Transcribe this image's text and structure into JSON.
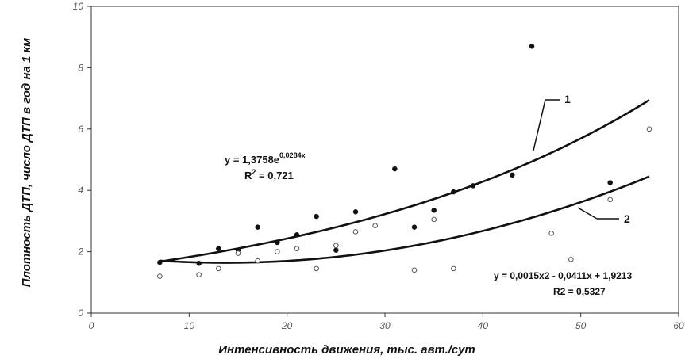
{
  "chart_data": {
    "type": "scatter",
    "xlabel": "Интенсивность движения, тыс. авт./сут",
    "ylabel": "Плотность ДТП, число ДТП в год на 1 км",
    "xlim": [
      0,
      60
    ],
    "ylim": [
      0,
      10
    ],
    "x_ticks": [
      "0",
      "10",
      "20",
      "30",
      "40",
      "50",
      "60"
    ],
    "y_ticks": [
      "0",
      "2",
      "4",
      "6",
      "8",
      "10"
    ],
    "grid": false,
    "series": [
      {
        "marker": "filled-circle",
        "color": "#111111",
        "points": [
          [
            7,
            1.65
          ],
          [
            11,
            1.62
          ],
          [
            13,
            2.1
          ],
          [
            15,
            2.05
          ],
          [
            17,
            2.8
          ],
          [
            19,
            2.3
          ],
          [
            21,
            2.55
          ],
          [
            23,
            3.15
          ],
          [
            25,
            2.05
          ],
          [
            27,
            3.3
          ],
          [
            31,
            4.7
          ],
          [
            33,
            2.8
          ],
          [
            35,
            3.35
          ],
          [
            37,
            3.95
          ],
          [
            39,
            4.15
          ],
          [
            43,
            4.5
          ],
          [
            45,
            8.7
          ],
          [
            53,
            4.25
          ]
        ]
      },
      {
        "marker": "open-circle",
        "color": "#555555",
        "points": [
          [
            7,
            1.2
          ],
          [
            11,
            1.25
          ],
          [
            13,
            1.45
          ],
          [
            15,
            1.95
          ],
          [
            17,
            1.7
          ],
          [
            19,
            2.0
          ],
          [
            21,
            2.1
          ],
          [
            23,
            1.45
          ],
          [
            25,
            2.2
          ],
          [
            27,
            2.65
          ],
          [
            29,
            2.85
          ],
          [
            33,
            1.4
          ],
          [
            35,
            3.05
          ],
          [
            37,
            1.45
          ],
          [
            47,
            2.6
          ],
          [
            49,
            1.75
          ],
          [
            53,
            3.7
          ],
          [
            57,
            6.0
          ]
        ]
      }
    ],
    "trendlines": [
      {
        "label": "1",
        "type": "exponential",
        "a": 1.3758,
        "b": 0.0284,
        "x_range": [
          7,
          57
        ],
        "equation_main": "y = 1,3758e",
        "equation_exp": "0,0284x",
        "r2_prefix": "R",
        "r2_sup": "2",
        "r2_value": " = 0,721"
      },
      {
        "label": "2",
        "type": "polynomial",
        "coefficients": [
          0.0015,
          -0.0411,
          1.9213
        ],
        "x_range": [
          7,
          57
        ],
        "equation": "y = 0,0015x2 - 0,0411x + 1,9213",
        "r2": "R2 = 0,5327"
      }
    ]
  }
}
